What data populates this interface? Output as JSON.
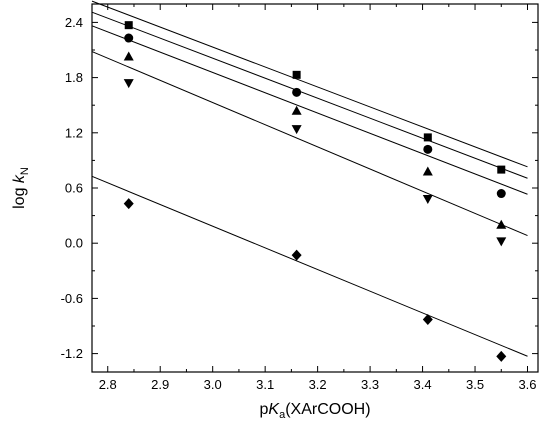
{
  "chart_data": {
    "type": "scatter",
    "xlabel": {
      "main": "p",
      "italic": "K",
      "sub": "a",
      "rest": "(XArCOOH)"
    },
    "ylabel": {
      "main": "log ",
      "italic": "k",
      "sub": "N"
    },
    "xlim": [
      2.77,
      3.62
    ],
    "ylim": [
      -1.4,
      2.6
    ],
    "xticks": [
      "2.8",
      "2.9",
      "3.0",
      "3.1",
      "3.2",
      "3.3",
      "3.4",
      "3.5",
      "3.6"
    ],
    "yticks": [
      "-1.2",
      "-0.6",
      "0.0",
      "0.6",
      "1.2",
      "1.8",
      "2.4"
    ],
    "grid": false,
    "series": [
      {
        "marker": "square",
        "x": [
          2.84,
          3.16,
          3.41,
          3.55
        ],
        "y": [
          2.37,
          1.83,
          1.15,
          0.8
        ],
        "fit": [
          2.566,
          -2.17
        ]
      },
      {
        "marker": "circle",
        "x": [
          2.84,
          3.16,
          3.41,
          3.55
        ],
        "y": [
          2.23,
          1.64,
          1.02,
          0.54
        ],
        "fit": [
          2.446,
          -2.175
        ]
      },
      {
        "marker": "triangle-up",
        "x": [
          2.84,
          3.16,
          3.41,
          3.55
        ],
        "y": [
          2.03,
          1.44,
          0.78,
          0.2
        ],
        "fit": [
          2.297,
          -2.206
        ]
      },
      {
        "marker": "triangle-down",
        "x": [
          2.84,
          3.16,
          3.41,
          3.55
        ],
        "y": [
          1.74,
          1.24,
          0.48,
          0.02
        ],
        "fit": [
          2.011,
          -2.41
        ]
      },
      {
        "marker": "diamond",
        "x": [
          2.84,
          3.16,
          3.41,
          3.55
        ],
        "y": [
          0.43,
          -0.13,
          -0.83,
          -1.23
        ],
        "fit": [
          0.656,
          -2.356
        ]
      }
    ]
  }
}
